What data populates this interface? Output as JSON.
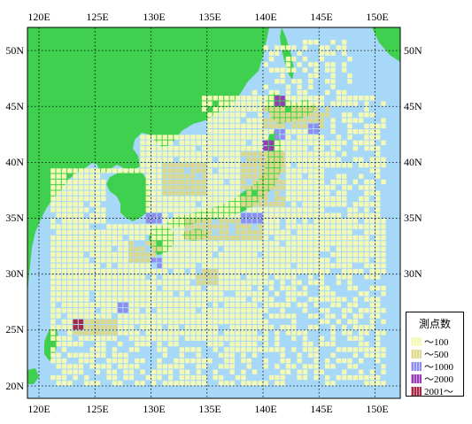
{
  "map": {
    "lon_labels": [
      "120E",
      "125E",
      "130E",
      "135E",
      "140E",
      "145E",
      "150E"
    ],
    "lat_labels": [
      "50N",
      "45N",
      "40N",
      "35N",
      "30N",
      "25N",
      "20N"
    ],
    "lon_range": [
      119,
      151
    ],
    "lat_range": [
      19,
      52
    ],
    "colors": {
      "sea": "#a8d8f8",
      "land": "#40d050",
      "grid": "#000000"
    }
  },
  "legend": {
    "title": "測点数",
    "items": [
      {
        "label": "～100",
        "color": "#f4f9b4"
      },
      {
        "label": "～500",
        "color": "#dcd98a"
      },
      {
        "label": "～1000",
        "color": "#8e8ef0"
      },
      {
        "label": "～2000",
        "color": "#9a3ab8"
      },
      {
        "label": "2001～",
        "color": "#a82848"
      }
    ]
  }
}
